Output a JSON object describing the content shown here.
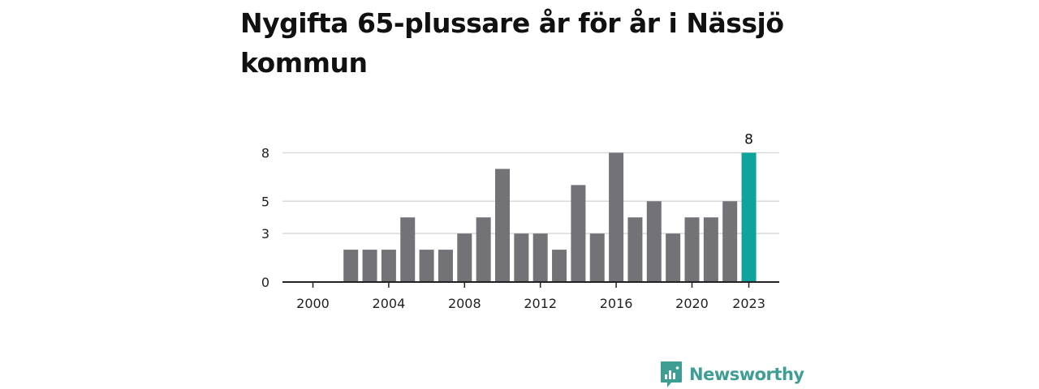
{
  "title": "Nygifta 65-plussare år för år i Nässjö kommun",
  "chart_data": {
    "type": "bar",
    "title": "Nygifta 65-plussare år för år i Nässjö kommun",
    "xlabel": "",
    "ylabel": "",
    "categories": [
      "2000",
      "2001",
      "2002",
      "2003",
      "2004",
      "2005",
      "2006",
      "2007",
      "2008",
      "2009",
      "2010",
      "2011",
      "2012",
      "2013",
      "2014",
      "2015",
      "2016",
      "2017",
      "2018",
      "2019",
      "2020",
      "2021",
      "2022",
      "2023"
    ],
    "values": [
      0,
      0,
      2,
      2,
      2,
      4,
      2,
      2,
      3,
      4,
      7,
      3,
      3,
      2,
      6,
      3,
      8,
      4,
      5,
      3,
      4,
      4,
      5,
      8
    ],
    "ylim": [
      0,
      8.8
    ],
    "yticks": [
      0,
      3,
      5,
      8
    ],
    "y_tick_labels": [
      "0",
      "3",
      "5",
      "8"
    ],
    "x_tick_years": [
      "2000",
      "2004",
      "2008",
      "2012",
      "2016",
      "2020",
      "2023"
    ],
    "highlight_index": 23,
    "highlight_label": "8",
    "grid": true,
    "legend": "none"
  },
  "colors": {
    "bar": "#737276",
    "highlight": "#0ea39b",
    "grid": "#d9d9d9",
    "axis": "#222222",
    "brand": "#3f9e93"
  },
  "branding": {
    "name": "Newsworthy",
    "icon": "newsworthy-logo-icon"
  }
}
